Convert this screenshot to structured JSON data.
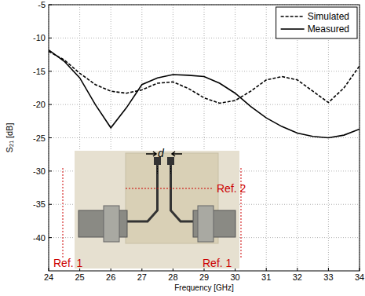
{
  "chart_data": {
    "type": "line",
    "x_label": "Frequency [GHz]",
    "y_label": "S₂₁ [dB]",
    "x": [
      24,
      24.5,
      25,
      25.5,
      26,
      26.5,
      27,
      27.5,
      28,
      28.5,
      29,
      29.5,
      30,
      30.5,
      31,
      31.5,
      32,
      32.5,
      33,
      33.5,
      34
    ],
    "series": [
      {
        "name": "Simulated",
        "color": "#000000",
        "line_style": "dashed",
        "values": [
          -12,
          -13.3,
          -15.3,
          -17,
          -18,
          -18.3,
          -17.8,
          -16.8,
          -16.6,
          -17.6,
          -19,
          -19.8,
          -19.4,
          -18,
          -16.3,
          -15.8,
          -16.3,
          -18,
          -19.7,
          -17.5,
          -14.2
        ]
      },
      {
        "name": "Measured",
        "color": "#000000",
        "line_style": "solid",
        "values": [
          -11.8,
          -13.5,
          -16,
          -20,
          -23.5,
          -20.5,
          -17,
          -16,
          -15.5,
          -15.6,
          -15.8,
          -16.8,
          -18.3,
          -20.3,
          -22,
          -23.3,
          -24.3,
          -24.8,
          -25,
          -24.6,
          -23.7
        ]
      }
    ],
    "xlim": [
      24,
      34
    ],
    "ylim": [
      -45,
      -5
    ],
    "xticks": [
      24,
      25,
      26,
      27,
      28,
      29,
      30,
      31,
      32,
      33,
      34
    ],
    "yticks": [
      -40,
      -35,
      -30,
      -25,
      -20,
      -15,
      -10,
      -5
    ],
    "grid": true,
    "legend": "top-right",
    "annotations": [
      "Ref. 1",
      "Ref. 2",
      "Ref. 1",
      "d"
    ]
  }
}
